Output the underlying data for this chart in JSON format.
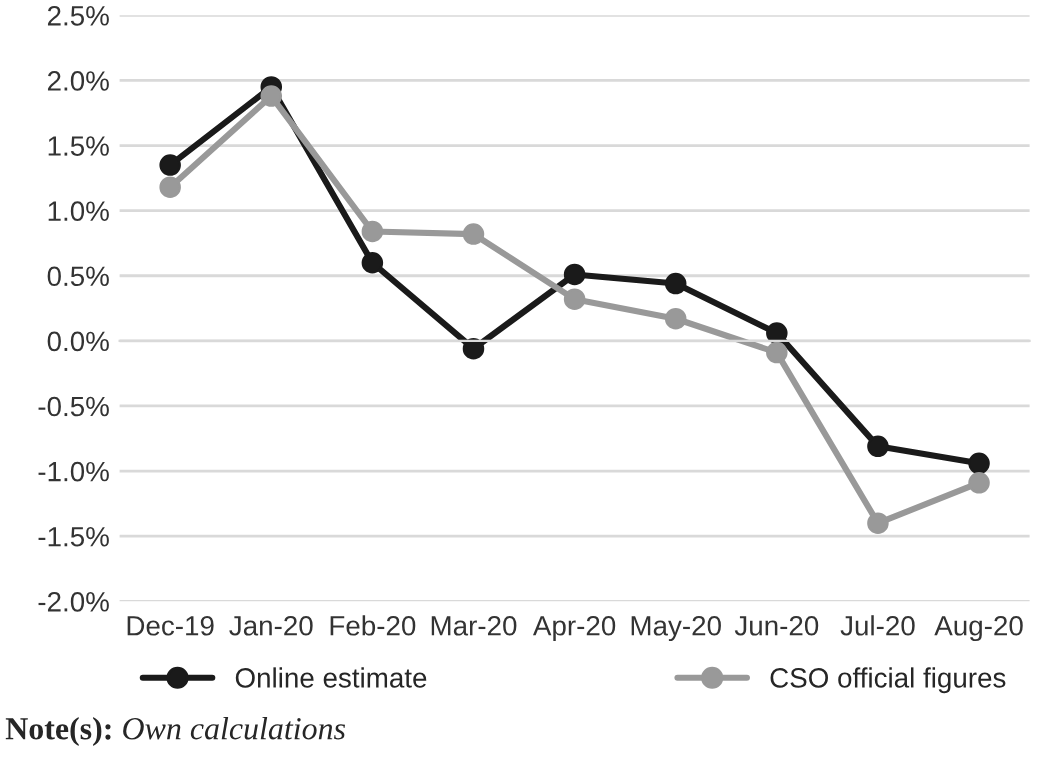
{
  "chart_data": {
    "type": "line",
    "categories": [
      "Dec-19",
      "Jan-20",
      "Feb-20",
      "Mar-20",
      "Apr-20",
      "May-20",
      "Jun-20",
      "Jul-20",
      "Aug-20"
    ],
    "series": [
      {
        "name": "Online estimate",
        "color": "#1a1a1a",
        "values": [
          1.35,
          1.95,
          0.6,
          -0.06,
          0.51,
          0.44,
          0.06,
          -0.81,
          -0.94
        ]
      },
      {
        "name": "CSO official figures",
        "color": "#999999",
        "values": [
          1.18,
          1.88,
          0.84,
          0.82,
          0.32,
          0.17,
          -0.09,
          -1.4,
          -1.09
        ]
      }
    ],
    "ylim": [
      -2.0,
      2.5
    ],
    "yticks": [
      {
        "value": -2.0,
        "label": "-2.0%"
      },
      {
        "value": -1.5,
        "label": "-1.5%"
      },
      {
        "value": -1.0,
        "label": "-1.0%"
      },
      {
        "value": -0.5,
        "label": "-0.5%"
      },
      {
        "value": 0,
        "label": "0.0%"
      },
      {
        "value": 0.5,
        "label": "0.5%"
      },
      {
        "value": 1.0,
        "label": "1.0%"
      },
      {
        "value": 1.5,
        "label": "1.5%"
      },
      {
        "value": 2.0,
        "label": "2.0%"
      },
      {
        "value": 2.5,
        "label": "2.5%"
      }
    ],
    "grid": "y",
    "legend": "bottom",
    "marker": "circle",
    "line_style": "solid",
    "annotations": [
      "Note(s):",
      "Own calculations"
    ]
  }
}
